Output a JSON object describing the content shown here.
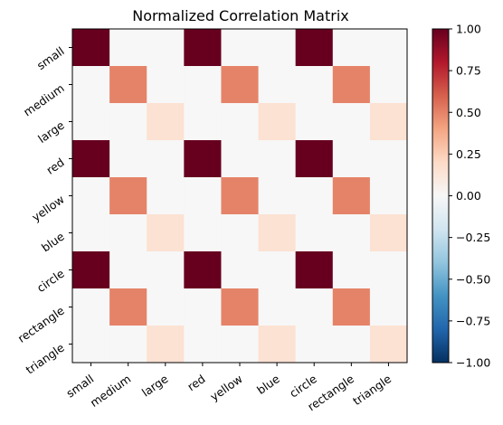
{
  "chart_data": {
    "type": "heatmap",
    "title": "Normalized Correlation Matrix",
    "x_labels": [
      "small",
      "medium",
      "large",
      "red",
      "yellow",
      "blue",
      "circle",
      "rectangle",
      "triangle"
    ],
    "y_labels": [
      "small",
      "medium",
      "large",
      "red",
      "yellow",
      "blue",
      "circle",
      "rectangle",
      "triangle"
    ],
    "values": [
      [
        1.0,
        0.0,
        0.0,
        1.0,
        0.0,
        0.0,
        1.0,
        0.0,
        0.0
      ],
      [
        0.0,
        0.5,
        0.0,
        0.0,
        0.5,
        0.0,
        0.0,
        0.5,
        0.0
      ],
      [
        0.0,
        0.0,
        0.15,
        0.0,
        0.0,
        0.15,
        0.0,
        0.0,
        0.15
      ],
      [
        1.0,
        0.0,
        0.0,
        1.0,
        0.0,
        0.0,
        1.0,
        0.0,
        0.0
      ],
      [
        0.0,
        0.5,
        0.0,
        0.0,
        0.5,
        0.0,
        0.0,
        0.5,
        0.0
      ],
      [
        0.0,
        0.0,
        0.15,
        0.0,
        0.0,
        0.15,
        0.0,
        0.0,
        0.15
      ],
      [
        1.0,
        0.0,
        0.0,
        1.0,
        0.0,
        0.0,
        1.0,
        0.0,
        0.0
      ],
      [
        0.0,
        0.5,
        0.0,
        0.0,
        0.5,
        0.0,
        0.0,
        0.5,
        0.0
      ],
      [
        0.0,
        0.0,
        0.15,
        0.0,
        0.0,
        0.15,
        0.0,
        0.0,
        0.15
      ]
    ],
    "colormap": "RdBu_r",
    "vmin": -1.0,
    "vmax": 1.0,
    "colorbar_ticks": [
      "1.00",
      "0.75",
      "0.50",
      "0.25",
      "0.00",
      "−0.25",
      "−0.50",
      "−0.75",
      "−1.00"
    ],
    "colorbar_tick_values": [
      1.0,
      0.75,
      0.5,
      0.25,
      0.0,
      -0.25,
      -0.5,
      -0.75,
      -1.0
    ],
    "colorbar_placement": "right",
    "grid": false
  }
}
